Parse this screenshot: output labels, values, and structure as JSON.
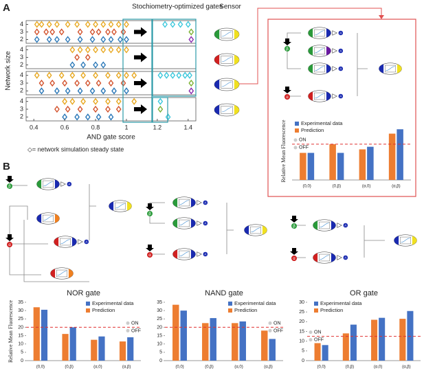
{
  "figure": {
    "panel_a": "A",
    "panel_b": "B",
    "header_gates": "Stochiometry-optimized gates",
    "header_sensor": "Sensor",
    "note": "◇= network simulation steady state",
    "species": {
      "output": "A",
      "alpha": "α",
      "beta": "β"
    }
  },
  "chart_data": [
    {
      "type": "scatter",
      "xlabel": "AND gate score",
      "ylabel": "Network size",
      "xlim": [
        0.35,
        1.45
      ],
      "ylim": [
        1.5,
        4.5
      ],
      "xticks": [
        0.4,
        0.6,
        0.8,
        1,
        1.2,
        1.4
      ],
      "yticks": [
        2,
        3,
        4
      ],
      "panels": [
        {
          "series": [
            {
              "color": "#e8a820",
              "x": [
                0.42,
                0.45,
                0.5,
                0.55,
                0.62,
                0.68,
                0.75,
                0.8,
                0.85,
                0.9,
                0.95,
                1.0
              ],
              "y": [
                4,
                4,
                4,
                4,
                4,
                4,
                4,
                4,
                4,
                4,
                4,
                4
              ]
            },
            {
              "color": "#d2502a",
              "x": [
                0.42,
                0.48,
                0.52,
                0.58,
                0.7,
                0.78,
                0.82,
                0.88,
                0.92,
                0.98
              ],
              "y": [
                3,
                3,
                3,
                3,
                3,
                3,
                3,
                3,
                3,
                3
              ]
            },
            {
              "color": "#2b78b8",
              "x": [
                0.42,
                0.5,
                0.55,
                0.62,
                0.7,
                0.78,
                0.85,
                0.9,
                0.96,
                1.0
              ],
              "y": [
                2,
                2,
                2,
                2,
                2,
                2,
                2,
                2,
                2,
                2
              ]
            },
            {
              "color": "#3cc8dc",
              "x": [
                1.25,
                1.3,
                1.35,
                1.4
              ],
              "y": [
                4,
                4,
                4,
                4
              ]
            },
            {
              "color": "#7ab030",
              "x": [
                1.42
              ],
              "y": [
                3
              ]
            },
            {
              "color": "#8a2ab0",
              "x": [
                1.42
              ],
              "y": [
                2
              ]
            }
          ]
        },
        {
          "series": [
            {
              "color": "#e8a820",
              "x": [
                0.65,
                0.7,
                0.75,
                0.8,
                0.85,
                0.9,
                0.95,
                1.0
              ],
              "y": [
                4,
                4,
                4,
                4,
                4,
                4,
                4,
                4
              ]
            },
            {
              "color": "#d2502a",
              "x": [
                0.68,
                0.75
              ],
              "y": [
                3,
                3
              ]
            },
            {
              "color": "#2b78b8",
              "x": [
                0.65,
                0.72,
                0.8,
                0.85
              ],
              "y": [
                2,
                2,
                2,
                2
              ]
            }
          ]
        },
        {
          "series": [
            {
              "color": "#e8a820",
              "x": [
                0.42,
                0.5,
                0.58,
                0.65,
                0.72,
                0.8,
                0.88,
                0.95,
                1.0,
                1.05
              ],
              "y": [
                4,
                4,
                4,
                4,
                4,
                4,
                4,
                4,
                4,
                4
              ]
            },
            {
              "color": "#d2502a",
              "x": [
                0.45,
                0.52,
                0.6,
                0.68,
                0.75,
                0.82,
                0.9,
                0.98
              ],
              "y": [
                3,
                3,
                3,
                3,
                3,
                3,
                3,
                3
              ]
            },
            {
              "color": "#2b78b8",
              "x": [
                0.45,
                0.55,
                0.62,
                0.7,
                0.78,
                0.85,
                0.92,
                1.0
              ],
              "y": [
                2,
                2,
                2,
                2,
                2,
                2,
                2,
                2
              ]
            },
            {
              "color": "#3cc8dc",
              "x": [
                1.22,
                1.26,
                1.3,
                1.34,
                1.38,
                1.41
              ],
              "y": [
                4,
                4,
                4,
                4,
                4,
                4
              ]
            },
            {
              "color": "#7ab030",
              "x": [
                1.42
              ],
              "y": [
                3
              ]
            },
            {
              "color": "#8a2ab0",
              "x": [
                1.42
              ],
              "y": [
                2
              ]
            }
          ]
        },
        {
          "series": [
            {
              "color": "#e8a820",
              "x": [
                0.6,
                0.65,
                0.72,
                0.8,
                0.88,
                0.95,
                1.05
              ],
              "y": [
                4,
                4,
                4,
                4,
                4,
                4,
                4
              ]
            },
            {
              "color": "#d2502a",
              "x": [
                0.55,
                0.62,
                0.7,
                0.8,
                0.88,
                0.95
              ],
              "y": [
                3,
                3,
                3,
                3,
                3,
                3
              ]
            },
            {
              "color": "#2b78b8",
              "x": [
                0.6,
                0.68,
                0.75,
                0.82,
                0.9
              ],
              "y": [
                2,
                2,
                2,
                2,
                2
              ]
            },
            {
              "color": "#3cc8dc",
              "x": [
                1.22
              ],
              "y": [
                4
              ]
            },
            {
              "color": "#7ab030",
              "x": [
                1.22
              ],
              "y": [
                3
              ]
            },
            {
              "color": "#3cc8dc",
              "x": [
                1.27
              ],
              "y": [
                2
              ]
            }
          ]
        }
      ]
    },
    {
      "type": "bar",
      "ylabel": "Relative Mean Fluorescence",
      "categories": [
        "(0,0)",
        "(0,β)",
        "(α,0)",
        "(α,β)"
      ],
      "series": [
        {
          "name": "Experimental data",
          "color": "#4472c4",
          "values": [
            15.5,
            15.5,
            19,
            29
          ]
        },
        {
          "name": "Prediction",
          "color": "#ed7d31",
          "values": [
            15.5,
            20.5,
            17.5,
            26.5
          ]
        }
      ],
      "ylim": [
        0,
        33
      ],
      "threshold": 20.5,
      "threshold_labels": [
        "ON",
        "OFF"
      ],
      "legend": "upper left"
    },
    {
      "type": "bar",
      "title": "NOR gate",
      "ylabel": "Relative Mean Fluorescence",
      "categories": [
        "(0,0)",
        "(0,β)",
        "(α,0)",
        "(α,β)"
      ],
      "series": [
        {
          "name": "Experimental data",
          "color": "#4472c4",
          "values": [
            30.5,
            20,
            14.5,
            14
          ]
        },
        {
          "name": "Prediction",
          "color": "#ed7d31",
          "values": [
            32,
            16,
            12.5,
            11.5
          ]
        }
      ],
      "ylim": [
        0,
        35
      ],
      "yticks": [
        0,
        5,
        10,
        15,
        20,
        25,
        30,
        35
      ],
      "threshold": 20,
      "threshold_labels": [
        "ON",
        "OFF"
      ],
      "legend": "upper right"
    },
    {
      "type": "bar",
      "title": "NAND gate",
      "categories": [
        "(0,0)",
        "(0,β)",
        "(α,0)",
        "(α,β)"
      ],
      "series": [
        {
          "name": "Experimental data",
          "color": "#4472c4",
          "values": [
            30,
            25.5,
            23.5,
            13
          ]
        },
        {
          "name": "Prediction",
          "color": "#ed7d31",
          "values": [
            33.5,
            22.5,
            22.5,
            18
          ]
        }
      ],
      "ylim": [
        0,
        35
      ],
      "yticks": [
        0,
        5,
        10,
        15,
        20,
        25,
        30,
        35
      ],
      "threshold": 20,
      "threshold_labels": [
        "ON",
        "OFF"
      ],
      "legend": "upper right"
    },
    {
      "type": "bar",
      "title": "OR gate",
      "categories": [
        "(0,0)",
        "(0,β)",
        "(α,0)",
        "(α,β)"
      ],
      "series": [
        {
          "name": "Experimental data",
          "color": "#4472c4",
          "values": [
            8,
            18.5,
            22,
            25.5
          ]
        },
        {
          "name": "Prediction",
          "color": "#ed7d31",
          "values": [
            9,
            14,
            21,
            21.5
          ]
        }
      ],
      "ylim": [
        0,
        30
      ],
      "yticks": [
        0,
        5,
        10,
        15,
        20,
        25,
        30
      ],
      "threshold": 12.5,
      "threshold_labels": [
        "ON",
        "OFF"
      ],
      "legend": "upper left"
    }
  ]
}
